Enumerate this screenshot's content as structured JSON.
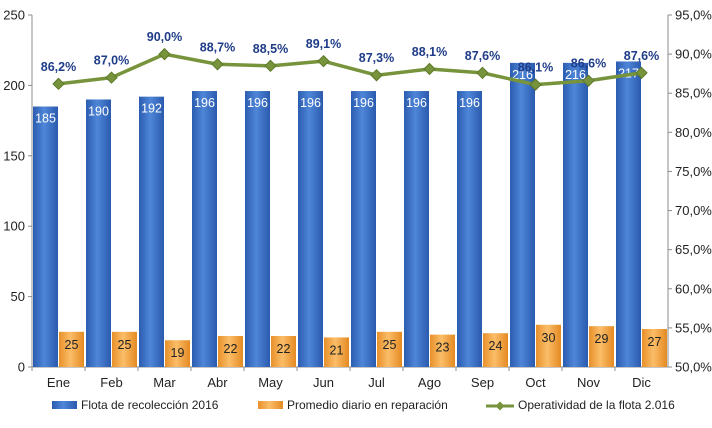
{
  "chart_data": {
    "type": "bar",
    "categories": [
      "Ene",
      "Feb",
      "Mar",
      "Abr",
      "May",
      "Jun",
      "Jul",
      "Ago",
      "Sep",
      "Oct",
      "Nov",
      "Dic"
    ],
    "series": [
      {
        "name": "Flota de recolección 2016",
        "type": "bar",
        "axis": "left",
        "color": "#3a6fc4",
        "values": [
          185,
          190,
          192,
          196,
          196,
          196,
          196,
          196,
          196,
          216,
          216,
          217
        ]
      },
      {
        "name": "Promedio diario en reparación",
        "type": "bar",
        "axis": "left",
        "color": "#f5a43c",
        "values": [
          25,
          25,
          19,
          22,
          22,
          21,
          25,
          23,
          24,
          30,
          29,
          27
        ]
      },
      {
        "name": "Operatividad de la flota 2.016",
        "type": "line",
        "axis": "right",
        "color": "#77933c",
        "values": [
          86.2,
          87.0,
          90.0,
          88.7,
          88.5,
          89.1,
          87.3,
          88.1,
          87.6,
          86.1,
          86.6,
          87.6
        ],
        "labels": [
          "86,2%",
          "87,0%",
          "90,0%",
          "88,7%",
          "88,5%",
          "89,1%",
          "87,3%",
          "88,1%",
          "87,6%",
          "86,1%",
          "86,6%",
          "87,6%"
        ]
      }
    ],
    "y_left": {
      "ylim": [
        0,
        250
      ],
      "ticks": [
        0,
        50,
        100,
        150,
        200,
        250
      ],
      "tick_labels": [
        "0",
        "50",
        "100",
        "150",
        "200",
        "250"
      ]
    },
    "y_right": {
      "ylim": [
        50,
        95
      ],
      "ticks": [
        50,
        55,
        60,
        65,
        70,
        75,
        80,
        85,
        90,
        95
      ],
      "tick_labels": [
        "50,0%",
        "55,0%",
        "60,0%",
        "65,0%",
        "70,0%",
        "75,0%",
        "80,0%",
        "85,0%",
        "90,0%",
        "95,0%"
      ]
    },
    "grid": false,
    "legend": "bottom",
    "title": "",
    "xlabel": "",
    "ylabel": ""
  }
}
